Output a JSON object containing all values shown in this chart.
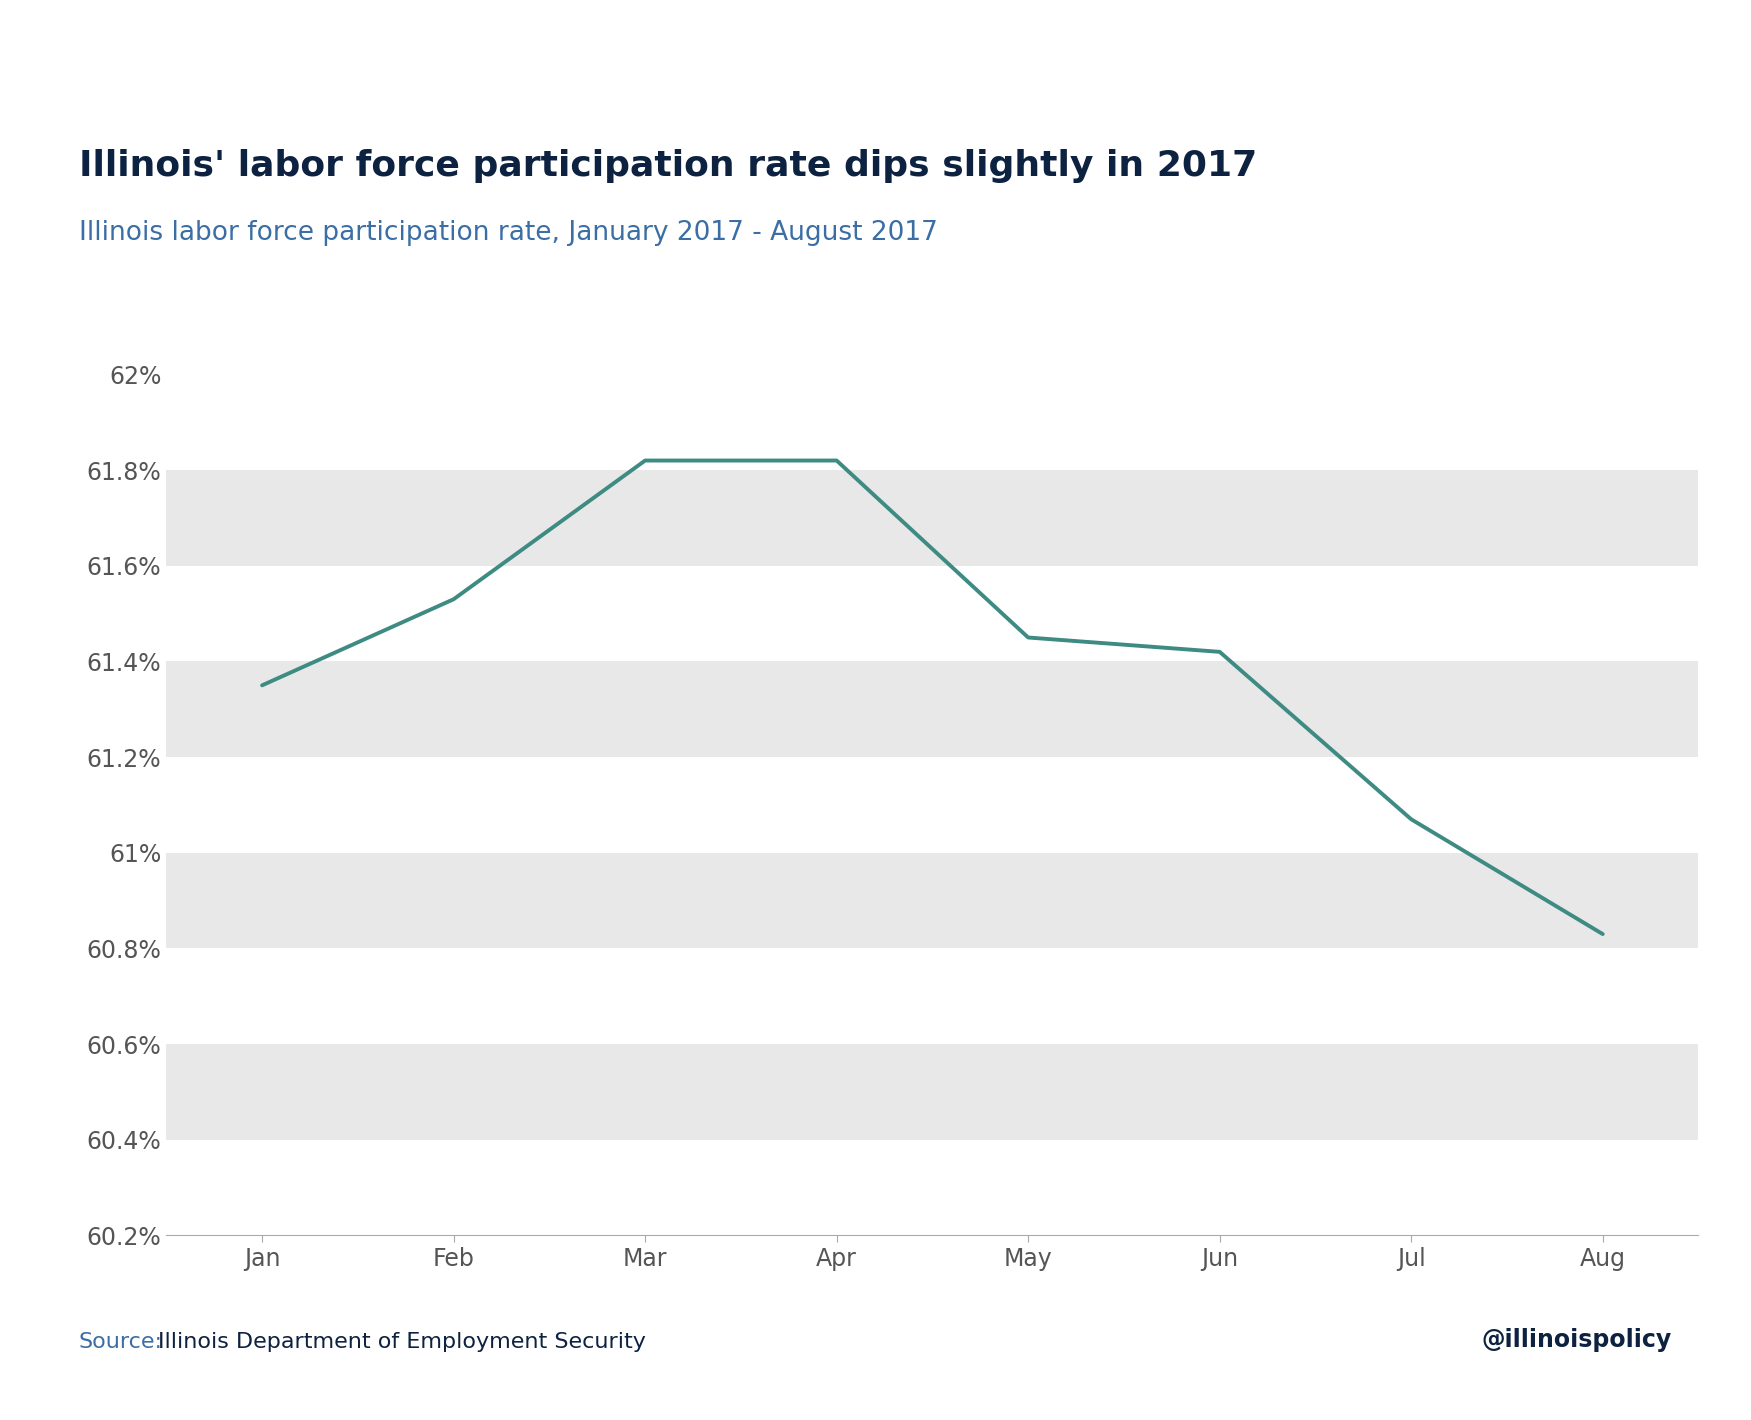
{
  "months": [
    "Jan",
    "Feb",
    "Mar",
    "Apr",
    "May",
    "Jun",
    "Jul",
    "Aug"
  ],
  "values": [
    61.35,
    61.53,
    61.82,
    61.82,
    61.45,
    61.42,
    61.07,
    60.83
  ],
  "title": "Illinois' labor force participation rate dips slightly in 2017",
  "subtitle": "Illinois labor force participation rate, January 2017 - August 2017",
  "source_label": "Source:",
  "source_text": "Illinois Department of Employment Security",
  "watermark": "@illinoispolicy",
  "title_color": "#0d2240",
  "subtitle_color": "#3a6ea5",
  "line_color": "#3d8b82",
  "bg_color": "#ffffff",
  "band_color": "#e8e8e8",
  "tick_color": "#555555",
  "ylim_min": 60.2,
  "ylim_max": 62.1,
  "ytick_values": [
    60.2,
    60.4,
    60.6,
    60.8,
    61.0,
    61.2,
    61.4,
    61.6,
    61.8,
    62.0
  ],
  "title_fontsize": 26,
  "subtitle_fontsize": 19,
  "tick_fontsize": 17,
  "source_fontsize": 16,
  "line_width": 2.8
}
